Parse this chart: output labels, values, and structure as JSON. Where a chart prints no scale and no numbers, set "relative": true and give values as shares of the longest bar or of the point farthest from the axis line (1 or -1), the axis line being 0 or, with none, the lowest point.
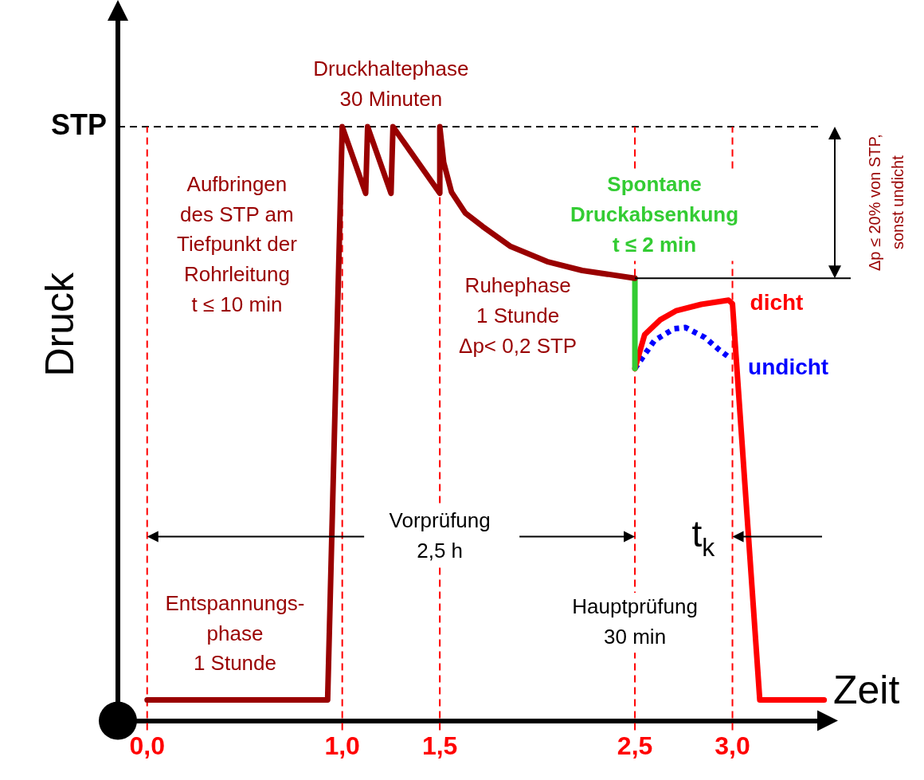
{
  "chart_data": {
    "type": "line",
    "relative": true,
    "xlabel": "Zeit",
    "ylabel": "Druck",
    "xlim": [
      -0.15,
      3.5
    ],
    "xticks": [
      {
        "value": 0,
        "label": "0,0"
      },
      {
        "value": 1,
        "label": "1,0"
      },
      {
        "value": 1.5,
        "label": "1,5"
      },
      {
        "value": 2.5,
        "label": "2,5"
      },
      {
        "value": 3,
        "label": "3,0"
      }
    ],
    "tick_labels": "x",
    "grid": false,
    "legend": false,
    "marker": "none",
    "series": [
      {
        "color": "#990000",
        "line_style": "solid",
        "x": [
          0,
          0.925,
          1.0,
          1.12,
          1.13,
          1.25,
          1.26,
          1.5,
          1.5,
          1.52,
          1.56,
          1.63,
          1.72,
          1.86,
          2.05,
          2.23,
          2.5
        ],
        "values": [
          0.035,
          0.035,
          1,
          0.888,
          1,
          0.888,
          1,
          0.888,
          1,
          0.94,
          0.89,
          0.855,
          0.832,
          0.799,
          0.773,
          0.758,
          0.745
        ]
      },
      {
        "color": "#33cc33",
        "line_style": "solid",
        "x": [
          2.5,
          2.5
        ],
        "values": [
          0.745,
          0.593
        ]
      },
      {
        "name": "dicht",
        "color": "#ff0000",
        "line_style": "solid",
        "x": [
          2.5,
          2.55,
          2.63,
          2.71,
          2.84,
          2.98,
          3.0,
          3.14,
          3.47
        ],
        "values": [
          0.593,
          0.65,
          0.675,
          0.69,
          0.701,
          0.708,
          0.702,
          0.035,
          0.035
        ]
      },
      {
        "name": "undicht",
        "color": "#0000ff",
        "line_style": "dotted",
        "x": [
          2.5,
          2.6,
          2.7,
          2.76,
          2.86,
          2.93,
          2.99
        ],
        "values": [
          0.593,
          0.64,
          0.66,
          0.662,
          0.645,
          0.625,
          0.61
        ]
      }
    ],
    "ref_lines": [
      {
        "axis": "y",
        "value": 1,
        "label": "STP",
        "color": "#000000",
        "line_style": "dashed"
      },
      {
        "axis": "x",
        "value": 0,
        "color": "#ff0000",
        "line_style": "dashed"
      },
      {
        "axis": "x",
        "value": 1,
        "color": "#ff0000",
        "line_style": "dashed"
      },
      {
        "axis": "x",
        "value": 1.5,
        "color": "#ff0000",
        "line_style": "dashed"
      },
      {
        "axis": "x",
        "value": 2.5,
        "color": "#ff0000",
        "line_style": "dashed"
      },
      {
        "axis": "x",
        "value": 3,
        "color": "#ff0000",
        "line_style": "dashed"
      }
    ],
    "annotations": [
      "Druckhaltephase\n30 Minuten",
      "Aufbringen\ndes STP am\nTiefpunkt der\nRohrleitung\nt ≤ 10 min",
      "Ruhephase\n1 Stunde\nΔp< 0,2 STP",
      "Spontane\nDruckabsenkung\nt ≤ 2 min",
      "Vorprüfung\n2,5 h",
      "t$_{k}$",
      "Hauptprüfung\n30 min",
      "Entspannungs-\nphase\n1 Stunde",
      "Δp ≤ 20% von STP,\nsonst undicht"
    ]
  }
}
